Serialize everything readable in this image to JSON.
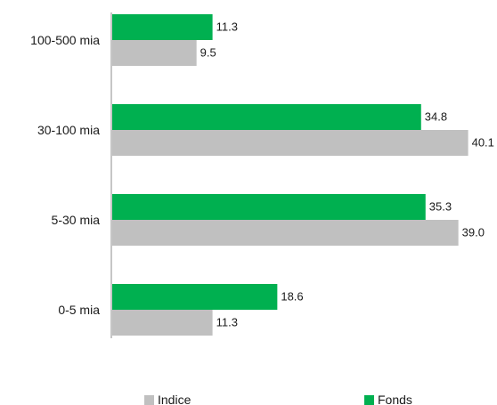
{
  "chart_data": {
    "type": "bar",
    "orientation": "horizontal",
    "categories": [
      "100-500 mia",
      "30-100 mia",
      "5-30 mia",
      "0-5 mia"
    ],
    "series": [
      {
        "name": "Fonds",
        "values": [
          11.3,
          34.8,
          35.3,
          18.6
        ],
        "color": "#00b050"
      },
      {
        "name": "Indice",
        "values": [
          9.5,
          40.1,
          39.0,
          11.3
        ],
        "color": "#c0c0c0"
      }
    ],
    "data_labels": {
      "Fonds": [
        "11.3",
        "34.8",
        "35.3",
        "18.6"
      ],
      "Indice": [
        "9.5",
        "40.1",
        "39.0",
        "11.3"
      ]
    },
    "xlim": [
      0,
      40.1
    ],
    "grid": false,
    "legend": {
      "position": "bottom",
      "order": [
        "Indice",
        "Fonds"
      ]
    },
    "title": "",
    "xlabel": "",
    "ylabel": ""
  }
}
